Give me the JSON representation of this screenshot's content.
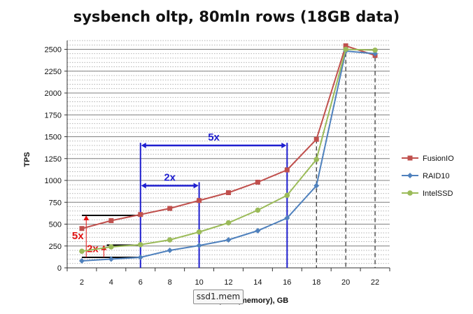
{
  "chart_data": {
    "type": "line",
    "title": "sysbench oltp, 80mln rows (18GB data)",
    "xlabel": "Buffer pool (memory), GB",
    "ylabel": "TPS",
    "x": [
      2,
      4,
      6,
      8,
      10,
      12,
      14,
      16,
      18,
      20,
      22
    ],
    "xlim": [
      1,
      23
    ],
    "ylim": [
      0,
      2600
    ],
    "yticks": [
      0,
      250,
      500,
      750,
      1000,
      1250,
      1500,
      1750,
      2000,
      2250,
      2500
    ],
    "grid": true,
    "legend_position": "right",
    "series": [
      {
        "name": "FusionIO",
        "color": "#c0504d",
        "marker": "square",
        "values": [
          450,
          540,
          610,
          680,
          770,
          860,
          980,
          1120,
          1470,
          2540,
          2430
        ]
      },
      {
        "name": "RAID10",
        "color": "#4f81bd",
        "marker": "diamond",
        "values": [
          80,
          100,
          120,
          200,
          255,
          320,
          425,
          570,
          940,
          2480,
          2450
        ]
      },
      {
        "name": "IntelSSD",
        "color": "#9bbb59",
        "marker": "circle",
        "values": [
          190,
          240,
          265,
          320,
          410,
          515,
          660,
          830,
          1240,
          2500,
          2490
        ]
      }
    ],
    "annotations": [
      {
        "label": "5x",
        "color": "#1f1fd0",
        "x_from": 6,
        "x_to": 16,
        "y": 1400
      },
      {
        "label": "2x",
        "color": "#1f1fd0",
        "x_from": 6,
        "x_to": 10,
        "y": 940
      },
      {
        "label": "5x",
        "color": "#e01010",
        "x": 2.3,
        "y_from": 120,
        "y_to": 600
      },
      {
        "label": "2x",
        "color": "#e01010",
        "x": 3.5,
        "y_from": 120,
        "y_to": 260
      }
    ]
  },
  "tooltip": {
    "text": "ssd1.mem"
  }
}
